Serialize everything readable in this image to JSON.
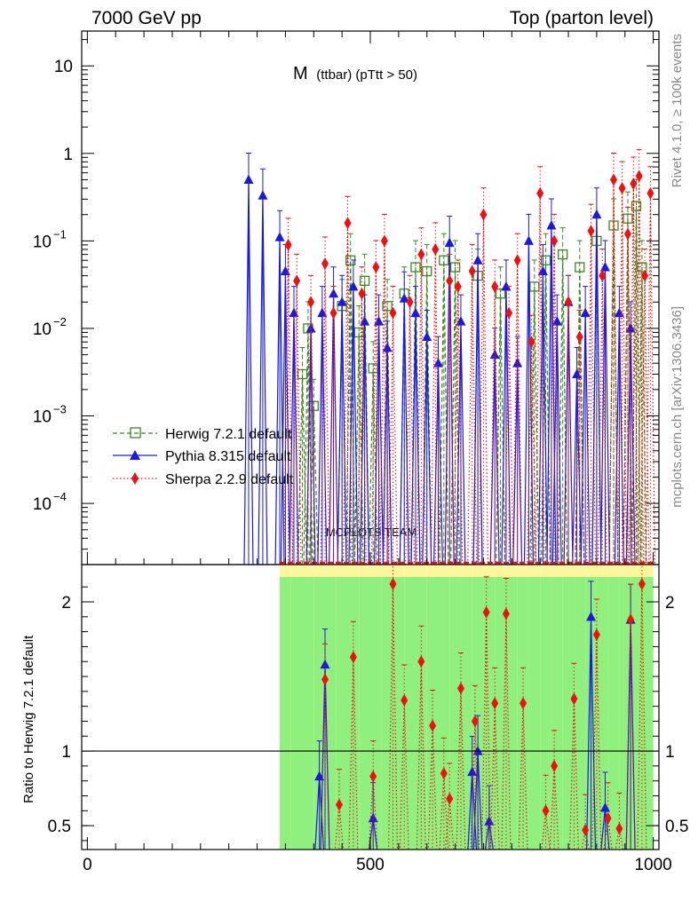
{
  "header": {
    "left": "7000 GeV pp",
    "right": "Top (parton level)"
  },
  "side_labels": {
    "rivet": "Rivet 4.1.0, ≥ 100k events",
    "mcplots": "mcplots.cern.ch [arXiv:1306.3436]"
  },
  "watermark": "MCPLOTS TEAM",
  "colors": {
    "herwig": "#3a8a1f",
    "pythia": "#1a1adf",
    "sherpa": "#ee1111",
    "band_inner": "#8ff07d",
    "band_outer": "#fbf79c"
  },
  "chart_data": [
    {
      "type": "line",
      "title": "M",
      "title_sub": "(ttbar) (pTtt > 50)",
      "xlabel": "",
      "ylabel": "",
      "xlim": [
        -10,
        1010
      ],
      "ylim": [
        2e-05,
        25
      ],
      "yscale": "log",
      "y_ticks": [
        {
          "value": 10,
          "label": "10"
        },
        {
          "value": 1,
          "label": "1"
        },
        {
          "value": 0.1,
          "label": "10",
          "exp": "−1"
        },
        {
          "value": 0.01,
          "label": "10",
          "exp": "−2"
        },
        {
          "value": 0.001,
          "label": "10",
          "exp": "−3"
        },
        {
          "value": 0.0001,
          "label": "10",
          "exp": "−4"
        }
      ],
      "legend": {
        "position": "middle-left",
        "entries": [
          "Herwig 7.2.1 default",
          "Pythia 8.315 default",
          "Sherpa 2.2.9 default"
        ]
      },
      "series": [
        {
          "name": "Herwig 7.2.1 default",
          "x": [
            380,
            390,
            400,
            450,
            465,
            480,
            490,
            505,
            530,
            560,
            580,
            600,
            630,
            650,
            690,
            730,
            790,
            810,
            840,
            870,
            900,
            930,
            955,
            970,
            980
          ],
          "values": [
            0.003,
            0.01,
            0.0013,
            0.018,
            0.06,
            0.009,
            0.035,
            0.0035,
            0.018,
            0.025,
            0.05,
            0.045,
            0.06,
            0.05,
            0.04,
            0.025,
            0.03,
            0.06,
            0.07,
            0.05,
            0.1,
            0.15,
            0.18,
            0.25,
            0.05
          ]
        },
        {
          "name": "Pythia 8.315 default",
          "x": [
            285,
            310,
            340,
            350,
            365,
            395,
            415,
            435,
            450,
            470,
            490,
            515,
            530,
            560,
            580,
            600,
            620,
            640,
            660,
            690,
            720,
            740,
            760,
            780,
            805,
            820,
            830,
            850,
            865,
            880,
            900,
            915,
            940,
            960
          ],
          "values": [
            0.5,
            0.33,
            0.11,
            0.045,
            0.015,
            0.01,
            0.015,
            0.025,
            0.02,
            0.03,
            0.012,
            0.012,
            0.006,
            0.022,
            0.015,
            0.008,
            0.004,
            0.095,
            0.012,
            0.06,
            0.005,
            0.03,
            0.004,
            0.1,
            0.045,
            0.15,
            0.012,
            0.02,
            0.003,
            0.015,
            0.2,
            0.05,
            0.015,
            0.01
          ]
        },
        {
          "name": "Sherpa 2.2.9 default",
          "x": [
            355,
            370,
            395,
            420,
            435,
            460,
            485,
            510,
            525,
            540,
            570,
            590,
            615,
            640,
            655,
            680,
            700,
            720,
            745,
            760,
            785,
            800,
            825,
            850,
            870,
            890,
            910,
            930,
            945,
            955,
            965,
            975,
            985,
            995
          ],
          "values": [
            0.09,
            0.035,
            0.02,
            0.055,
            0.015,
            0.16,
            0.025,
            0.05,
            0.1,
            0.015,
            0.02,
            0.07,
            0.08,
            0.035,
            0.03,
            0.045,
            0.2,
            0.03,
            0.015,
            0.06,
            0.007,
            0.35,
            0.1,
            0.02,
            0.008,
            0.13,
            0.04,
            0.5,
            0.4,
            0.12,
            0.45,
            0.55,
            0.04,
            0.35
          ]
        }
      ]
    },
    {
      "type": "line",
      "title": "",
      "xlabel": "",
      "ylabel": "Ratio to Herwig 7.2.1 default",
      "xlim": [
        -10,
        1010
      ],
      "ylim": [
        0.34,
        2.25
      ],
      "y_ticks": [
        0.5,
        1,
        2
      ],
      "x_ticks": [
        0,
        500,
        1000
      ],
      "reference_line": 1,
      "band": {
        "x_start": 340,
        "x_end": 1000,
        "bins": 33,
        "inner": [
          0.34,
          2.25
        ],
        "outer": [
          0.34,
          2.25
        ]
      },
      "series": [
        {
          "name": "Pythia 8.315 default",
          "x": [
            410,
            420,
            505,
            680,
            690,
            710,
            890,
            915,
            960
          ],
          "values": [
            0.83,
            1.58,
            0.55,
            0.86,
            1.0,
            0.53,
            1.9,
            0.62,
            1.88
          ]
        },
        {
          "name": "Sherpa 2.2.9 default",
          "x": [
            420,
            445,
            470,
            505,
            540,
            560,
            590,
            610,
            630,
            640,
            660,
            685,
            705,
            720,
            740,
            770,
            810,
            825,
            860,
            880,
            900,
            920,
            940,
            960,
            980
          ],
          "values": [
            1.48,
            0.64,
            1.63,
            0.83,
            2.12,
            1.34,
            1.6,
            1.17,
            0.85,
            0.68,
            1.42,
            1.2,
            1.93,
            1.32,
            1.92,
            1.32,
            0.6,
            0.9,
            1.35,
            0.47,
            1.78,
            0.55,
            0.48,
            1.88,
            2.12
          ]
        }
      ]
    }
  ]
}
